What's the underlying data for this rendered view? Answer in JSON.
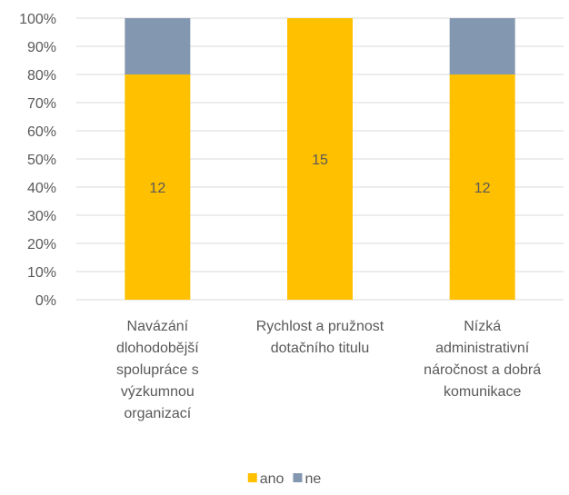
{
  "chart_data": {
    "type": "stacked_percent_bar",
    "categories": [
      "Navázání dlohodobější spolupráce s výzkumnou organizací",
      "Rychlost a pružnost dotačního titulu",
      "Nízká administrativní náročnost a dobrá komunikace"
    ],
    "series": [
      {
        "name": "ano",
        "color": "#FFC000",
        "values": [
          12,
          15,
          12
        ],
        "data_labels": true
      },
      {
        "name": "ne",
        "color": "#8497B0",
        "values": [
          3,
          0,
          3
        ],
        "data_labels": false
      }
    ],
    "ylim": [
      0,
      100
    ],
    "yticks": [
      {
        "value": 0,
        "label": "0%"
      },
      {
        "value": 10,
        "label": "10%"
      },
      {
        "value": 20,
        "label": "20%"
      },
      {
        "value": 30,
        "label": "30%"
      },
      {
        "value": 40,
        "label": "40%"
      },
      {
        "value": 50,
        "label": "50%"
      },
      {
        "value": 60,
        "label": "60%"
      },
      {
        "value": 70,
        "label": "70%"
      },
      {
        "value": 80,
        "label": "80%"
      },
      {
        "value": 90,
        "label": "90%"
      },
      {
        "value": 100,
        "label": "100%"
      }
    ],
    "grid": true,
    "legend": "bottom"
  }
}
